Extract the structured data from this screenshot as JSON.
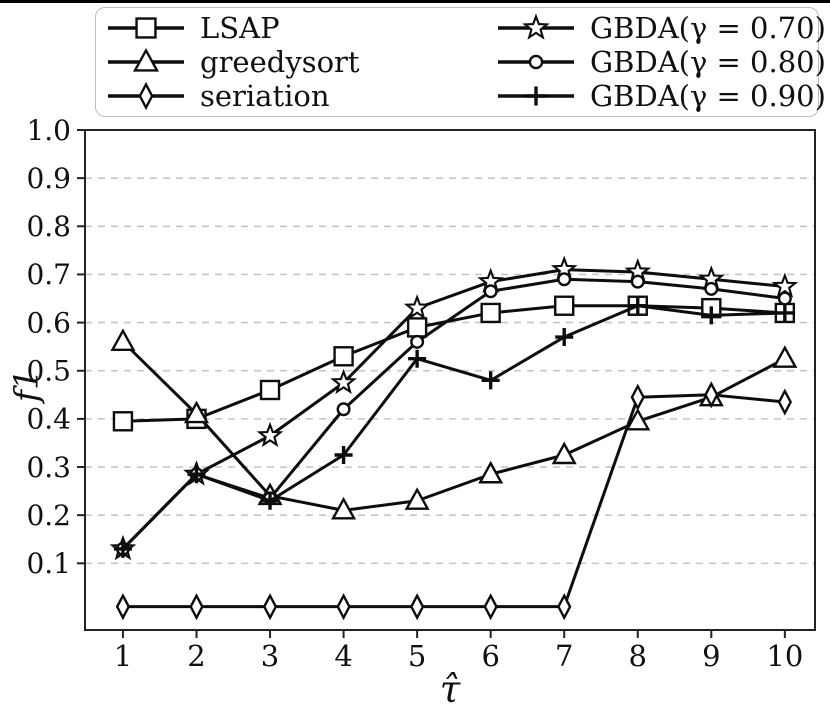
{
  "chart_data": {
    "type": "line",
    "title": "",
    "xlabel": "τ̂",
    "ylabel": "f1",
    "x": [
      1,
      2,
      3,
      4,
      5,
      6,
      7,
      8,
      9,
      10
    ],
    "xtick_labels": [
      "1",
      "2",
      "3",
      "4",
      "5",
      "6",
      "7",
      "8",
      "9",
      "10"
    ],
    "yticks": [
      0.1,
      0.2,
      0.3,
      0.4,
      0.5,
      0.6,
      0.7,
      0.8,
      0.9,
      1.0
    ],
    "ytick_labels": [
      "0.1",
      "0.2",
      "0.3",
      "0.4",
      "0.5",
      "0.6",
      "0.7",
      "0.8",
      "0.9",
      "1.0"
    ],
    "xlim": [
      0.484,
      10.41
    ],
    "ylim": [
      -0.0385,
      1.0
    ],
    "grid": {
      "horizontal": true,
      "style": "dashed",
      "color": "#c6c6c6",
      "at": [
        0.1,
        0.2,
        0.3,
        0.4,
        0.5,
        0.6,
        0.7,
        0.8,
        0.9
      ]
    },
    "legend": {
      "position": "top-outside",
      "columns": 2,
      "border_color": "#bdbdbd"
    },
    "line_color": "#0d0d0d",
    "marker_fill": "#ffffff",
    "series": [
      {
        "name": "LSAP",
        "marker": "square",
        "values": [
          0.395,
          0.4,
          0.46,
          0.53,
          0.59,
          0.62,
          0.635,
          0.635,
          0.63,
          0.62
        ]
      },
      {
        "name": "greedysort",
        "marker": "triangle",
        "values": [
          0.56,
          0.41,
          0.24,
          0.21,
          0.23,
          0.285,
          0.325,
          0.395,
          0.445,
          0.525
        ]
      },
      {
        "name": "seriation",
        "marker": "diamond",
        "values": [
          0.01,
          0.01,
          0.01,
          0.01,
          0.01,
          0.01,
          0.01,
          0.445,
          0.45,
          0.435
        ]
      },
      {
        "name": "GBDA(γ = 0.70)",
        "marker": "star",
        "values": [
          0.13,
          0.285,
          0.365,
          0.475,
          0.63,
          0.685,
          0.71,
          0.705,
          0.69,
          0.675
        ]
      },
      {
        "name": "GBDA(γ = 0.80)",
        "marker": "circle",
        "values": [
          0.13,
          0.285,
          0.235,
          0.42,
          0.56,
          0.665,
          0.69,
          0.685,
          0.67,
          0.65
        ]
      },
      {
        "name": "GBDA(γ = 0.90)",
        "marker": "plus",
        "values": [
          0.13,
          0.285,
          0.23,
          0.325,
          0.525,
          0.48,
          0.57,
          0.635,
          0.615,
          0.62
        ]
      }
    ]
  }
}
